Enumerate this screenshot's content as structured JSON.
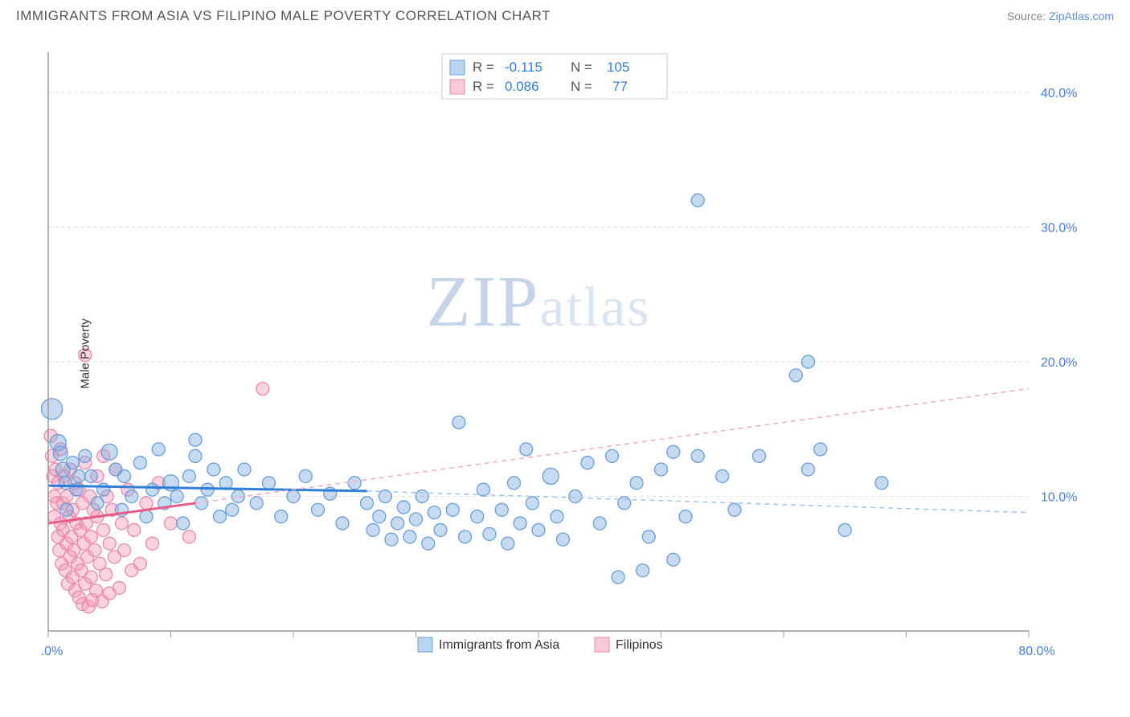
{
  "title": "IMMIGRANTS FROM ASIA VS FILIPINO MALE POVERTY CORRELATION CHART",
  "source_label": "Source: ",
  "source_name": "ZipAtlas.com",
  "ylabel": "Male Poverty",
  "watermark_a": "ZIP",
  "watermark_b": "atlas",
  "chart": {
    "type": "scatter",
    "xlim": [
      0,
      80
    ],
    "ylim": [
      0,
      43
    ],
    "x_ticks_minor": [
      10,
      20,
      30,
      40,
      50,
      60,
      70
    ],
    "x_ticks_major_labels": [
      {
        "v": 0,
        "label": "0.0%"
      },
      {
        "v": 80,
        "label": "80.0%"
      }
    ],
    "y_grid": [
      10,
      20,
      30,
      40
    ],
    "y_labels": [
      {
        "v": 10,
        "label": "10.0%"
      },
      {
        "v": 20,
        "label": "20.0%"
      },
      {
        "v": 30,
        "label": "30.0%"
      },
      {
        "v": 40,
        "label": "40.0%"
      }
    ],
    "background_color": "#ffffff",
    "grid_color": "#dddddd",
    "axis_color": "#999999",
    "series": [
      {
        "name": "Immigrants from Asia",
        "color_fill": "rgba(120,170,225,0.42)",
        "color_stroke": "#6a9ed8",
        "trend_color": "#2f7ed8",
        "trend_dash_color": "#a0c4e8",
        "R": "-0.115",
        "N": "105",
        "trend_solid": {
          "x1": 0,
          "y1": 10.8,
          "x2": 26,
          "y2": 10.4
        },
        "trend_dash": {
          "x1": 26,
          "y1": 10.4,
          "x2": 80,
          "y2": 8.8
        },
        "points": [
          {
            "x": 0.3,
            "y": 16.5,
            "r": 13
          },
          {
            "x": 0.8,
            "y": 14.0,
            "r": 10
          },
          {
            "x": 1.0,
            "y": 13.2,
            "r": 9
          },
          {
            "x": 1.2,
            "y": 12.0,
            "r": 9
          },
          {
            "x": 1.4,
            "y": 11.0,
            "r": 8
          },
          {
            "x": 1.5,
            "y": 9.0,
            "r": 8
          },
          {
            "x": 2.0,
            "y": 12.5,
            "r": 8
          },
          {
            "x": 2.3,
            "y": 10.5,
            "r": 8
          },
          {
            "x": 2.5,
            "y": 11.5,
            "r": 8
          },
          {
            "x": 3.0,
            "y": 13.0,
            "r": 8
          },
          {
            "x": 3.5,
            "y": 11.5,
            "r": 8
          },
          {
            "x": 4.0,
            "y": 9.5,
            "r": 8
          },
          {
            "x": 4.5,
            "y": 10.5,
            "r": 8
          },
          {
            "x": 5.0,
            "y": 13.3,
            "r": 10
          },
          {
            "x": 5.5,
            "y": 12.0,
            "r": 8
          },
          {
            "x": 6.0,
            "y": 9.0,
            "r": 8
          },
          {
            "x": 6.2,
            "y": 11.5,
            "r": 8
          },
          {
            "x": 6.8,
            "y": 10.0,
            "r": 8
          },
          {
            "x": 7.5,
            "y": 12.5,
            "r": 8
          },
          {
            "x": 8.0,
            "y": 8.5,
            "r": 8
          },
          {
            "x": 8.5,
            "y": 10.5,
            "r": 8
          },
          {
            "x": 9.0,
            "y": 13.5,
            "r": 8
          },
          {
            "x": 9.5,
            "y": 9.5,
            "r": 8
          },
          {
            "x": 10.0,
            "y": 11.0,
            "r": 10
          },
          {
            "x": 10.5,
            "y": 10.0,
            "r": 8
          },
          {
            "x": 11.0,
            "y": 8.0,
            "r": 8
          },
          {
            "x": 11.5,
            "y": 11.5,
            "r": 8
          },
          {
            "x": 12.0,
            "y": 13.0,
            "r": 8
          },
          {
            "x": 12.0,
            "y": 14.2,
            "r": 8
          },
          {
            "x": 12.5,
            "y": 9.5,
            "r": 8
          },
          {
            "x": 13.0,
            "y": 10.5,
            "r": 8
          },
          {
            "x": 13.5,
            "y": 12.0,
            "r": 8
          },
          {
            "x": 14.0,
            "y": 8.5,
            "r": 8
          },
          {
            "x": 14.5,
            "y": 11.0,
            "r": 8
          },
          {
            "x": 15.0,
            "y": 9.0,
            "r": 8
          },
          {
            "x": 15.5,
            "y": 10.0,
            "r": 8
          },
          {
            "x": 16.0,
            "y": 12.0,
            "r": 8
          },
          {
            "x": 17.0,
            "y": 9.5,
            "r": 8
          },
          {
            "x": 18.0,
            "y": 11.0,
            "r": 8
          },
          {
            "x": 19.0,
            "y": 8.5,
            "r": 8
          },
          {
            "x": 20.0,
            "y": 10.0,
            "r": 8
          },
          {
            "x": 21.0,
            "y": 11.5,
            "r": 8
          },
          {
            "x": 22.0,
            "y": 9.0,
            "r": 8
          },
          {
            "x": 23.0,
            "y": 10.2,
            "r": 8
          },
          {
            "x": 24.0,
            "y": 8.0,
            "r": 8
          },
          {
            "x": 25.0,
            "y": 11.0,
            "r": 8
          },
          {
            "x": 26.0,
            "y": 9.5,
            "r": 8
          },
          {
            "x": 26.5,
            "y": 7.5,
            "r": 8
          },
          {
            "x": 27.0,
            "y": 8.5,
            "r": 8
          },
          {
            "x": 27.5,
            "y": 10.0,
            "r": 8
          },
          {
            "x": 28.0,
            "y": 6.8,
            "r": 8
          },
          {
            "x": 28.5,
            "y": 8.0,
            "r": 8
          },
          {
            "x": 29.0,
            "y": 9.2,
            "r": 8
          },
          {
            "x": 29.5,
            "y": 7.0,
            "r": 8
          },
          {
            "x": 30.0,
            "y": 8.3,
            "r": 8
          },
          {
            "x": 30.5,
            "y": 10.0,
            "r": 8
          },
          {
            "x": 31.0,
            "y": 6.5,
            "r": 8
          },
          {
            "x": 31.5,
            "y": 8.8,
            "r": 8
          },
          {
            "x": 32.0,
            "y": 7.5,
            "r": 8
          },
          {
            "x": 33.0,
            "y": 9.0,
            "r": 8
          },
          {
            "x": 33.5,
            "y": 15.5,
            "r": 8
          },
          {
            "x": 34.0,
            "y": 7.0,
            "r": 8
          },
          {
            "x": 35.0,
            "y": 8.5,
            "r": 8
          },
          {
            "x": 35.5,
            "y": 10.5,
            "r": 8
          },
          {
            "x": 36.0,
            "y": 7.2,
            "r": 8
          },
          {
            "x": 37.0,
            "y": 9.0,
            "r": 8
          },
          {
            "x": 37.5,
            "y": 6.5,
            "r": 8
          },
          {
            "x": 38.0,
            "y": 11.0,
            "r": 8
          },
          {
            "x": 38.5,
            "y": 8.0,
            "r": 8
          },
          {
            "x": 39.0,
            "y": 13.5,
            "r": 8
          },
          {
            "x": 39.5,
            "y": 9.5,
            "r": 8
          },
          {
            "x": 40.0,
            "y": 7.5,
            "r": 8
          },
          {
            "x": 41.0,
            "y": 11.5,
            "r": 10
          },
          {
            "x": 41.5,
            "y": 8.5,
            "r": 8
          },
          {
            "x": 42.0,
            "y": 6.8,
            "r": 8
          },
          {
            "x": 43.0,
            "y": 10.0,
            "r": 8
          },
          {
            "x": 44.0,
            "y": 12.5,
            "r": 8
          },
          {
            "x": 45.0,
            "y": 8.0,
            "r": 8
          },
          {
            "x": 46.0,
            "y": 13.0,
            "r": 8
          },
          {
            "x": 46.5,
            "y": 4.0,
            "r": 8
          },
          {
            "x": 47.0,
            "y": 9.5,
            "r": 8
          },
          {
            "x": 48.0,
            "y": 11.0,
            "r": 8
          },
          {
            "x": 48.5,
            "y": 4.5,
            "r": 8
          },
          {
            "x": 49.0,
            "y": 7.0,
            "r": 8
          },
          {
            "x": 50.0,
            "y": 12.0,
            "r": 8
          },
          {
            "x": 51.0,
            "y": 13.3,
            "r": 8
          },
          {
            "x": 51.0,
            "y": 5.3,
            "r": 8
          },
          {
            "x": 52.0,
            "y": 8.5,
            "r": 8
          },
          {
            "x": 53.0,
            "y": 32.0,
            "r": 8
          },
          {
            "x": 53.0,
            "y": 13.0,
            "r": 8
          },
          {
            "x": 55.0,
            "y": 11.5,
            "r": 8
          },
          {
            "x": 56.0,
            "y": 9.0,
            "r": 8
          },
          {
            "x": 58.0,
            "y": 13.0,
            "r": 8
          },
          {
            "x": 61.0,
            "y": 19.0,
            "r": 8
          },
          {
            "x": 62.0,
            "y": 20.0,
            "r": 8
          },
          {
            "x": 62.0,
            "y": 12.0,
            "r": 8
          },
          {
            "x": 63.0,
            "y": 13.5,
            "r": 8
          },
          {
            "x": 65.0,
            "y": 7.5,
            "r": 8
          },
          {
            "x": 68.0,
            "y": 11.0,
            "r": 8
          }
        ]
      },
      {
        "name": "Filipinos",
        "color_fill": "rgba(245,150,180,0.42)",
        "color_stroke": "#e88aac",
        "trend_color": "#e85a8a",
        "trend_dash_color": "#f5a8c0",
        "R": "0.086",
        "N": "77",
        "trend_solid": {
          "x1": 0,
          "y1": 8.0,
          "x2": 12,
          "y2": 9.5
        },
        "trend_dash": {
          "x1": 12,
          "y1": 9.5,
          "x2": 80,
          "y2": 18.0
        },
        "points": [
          {
            "x": 0.2,
            "y": 14.5,
            "r": 8
          },
          {
            "x": 0.3,
            "y": 13.0,
            "r": 8
          },
          {
            "x": 0.4,
            "y": 11.5,
            "r": 8
          },
          {
            "x": 0.5,
            "y": 10.0,
            "r": 8
          },
          {
            "x": 0.5,
            "y": 8.5,
            "r": 8
          },
          {
            "x": 0.6,
            "y": 12.0,
            "r": 8
          },
          {
            "x": 0.7,
            "y": 9.5,
            "r": 8
          },
          {
            "x": 0.8,
            "y": 7.0,
            "r": 8
          },
          {
            "x": 0.8,
            "y": 11.0,
            "r": 8
          },
          {
            "x": 0.9,
            "y": 6.0,
            "r": 8
          },
          {
            "x": 1.0,
            "y": 8.0,
            "r": 8
          },
          {
            "x": 1.0,
            "y": 13.5,
            "r": 8
          },
          {
            "x": 1.1,
            "y": 5.0,
            "r": 8
          },
          {
            "x": 1.2,
            "y": 9.5,
            "r": 8
          },
          {
            "x": 1.2,
            "y": 7.5,
            "r": 8
          },
          {
            "x": 1.3,
            "y": 11.5,
            "r": 8
          },
          {
            "x": 1.4,
            "y": 4.5,
            "r": 8
          },
          {
            "x": 1.5,
            "y": 6.5,
            "r": 8
          },
          {
            "x": 1.5,
            "y": 10.0,
            "r": 8
          },
          {
            "x": 1.6,
            "y": 3.5,
            "r": 8
          },
          {
            "x": 1.7,
            "y": 8.5,
            "r": 8
          },
          {
            "x": 1.8,
            "y": 5.5,
            "r": 8
          },
          {
            "x": 1.8,
            "y": 12.0,
            "r": 8
          },
          {
            "x": 1.9,
            "y": 7.0,
            "r": 8
          },
          {
            "x": 2.0,
            "y": 4.0,
            "r": 8
          },
          {
            "x": 2.0,
            "y": 9.0,
            "r": 8
          },
          {
            "x": 2.1,
            "y": 6.0,
            "r": 8
          },
          {
            "x": 2.2,
            "y": 11.0,
            "r": 8
          },
          {
            "x": 2.2,
            "y": 3.0,
            "r": 8
          },
          {
            "x": 2.3,
            "y": 8.0,
            "r": 8
          },
          {
            "x": 2.4,
            "y": 5.0,
            "r": 8
          },
          {
            "x": 2.5,
            "y": 10.5,
            "r": 8
          },
          {
            "x": 2.5,
            "y": 2.5,
            "r": 8
          },
          {
            "x": 2.6,
            "y": 7.5,
            "r": 8
          },
          {
            "x": 2.7,
            "y": 4.5,
            "r": 8
          },
          {
            "x": 2.8,
            "y": 9.5,
            "r": 8
          },
          {
            "x": 2.8,
            "y": 2.0,
            "r": 8
          },
          {
            "x": 2.9,
            "y": 6.5,
            "r": 8
          },
          {
            "x": 3.0,
            "y": 3.5,
            "r": 8
          },
          {
            "x": 3.0,
            "y": 12.5,
            "r": 8
          },
          {
            "x": 3.1,
            "y": 8.0,
            "r": 8
          },
          {
            "x": 3.2,
            "y": 5.5,
            "r": 8
          },
          {
            "x": 3.3,
            "y": 1.8,
            "r": 8
          },
          {
            "x": 3.4,
            "y": 10.0,
            "r": 8
          },
          {
            "x": 3.5,
            "y": 7.0,
            "r": 8
          },
          {
            "x": 3.5,
            "y": 4.0,
            "r": 8
          },
          {
            "x": 3.6,
            "y": 2.3,
            "r": 8
          },
          {
            "x": 3.7,
            "y": 9.0,
            "r": 8
          },
          {
            "x": 3.8,
            "y": 6.0,
            "r": 8
          },
          {
            "x": 3.9,
            "y": 3.0,
            "r": 8
          },
          {
            "x": 4.0,
            "y": 11.5,
            "r": 8
          },
          {
            "x": 3.0,
            "y": 20.5,
            "r": 8
          },
          {
            "x": 4.0,
            "y": 8.5,
            "r": 8
          },
          {
            "x": 4.2,
            "y": 5.0,
            "r": 8
          },
          {
            "x": 4.4,
            "y": 2.2,
            "r": 8
          },
          {
            "x": 4.5,
            "y": 13.0,
            "r": 8
          },
          {
            "x": 4.5,
            "y": 7.5,
            "r": 8
          },
          {
            "x": 4.7,
            "y": 4.2,
            "r": 8
          },
          {
            "x": 4.8,
            "y": 10.0,
            "r": 8
          },
          {
            "x": 5.0,
            "y": 6.5,
            "r": 8
          },
          {
            "x": 5.0,
            "y": 2.8,
            "r": 8
          },
          {
            "x": 5.2,
            "y": 9.0,
            "r": 8
          },
          {
            "x": 5.4,
            "y": 5.5,
            "r": 8
          },
          {
            "x": 5.5,
            "y": 12.0,
            "r": 8
          },
          {
            "x": 5.8,
            "y": 3.2,
            "r": 8
          },
          {
            "x": 6.0,
            "y": 8.0,
            "r": 8
          },
          {
            "x": 6.2,
            "y": 6.0,
            "r": 8
          },
          {
            "x": 6.5,
            "y": 10.5,
            "r": 8
          },
          {
            "x": 6.8,
            "y": 4.5,
            "r": 8
          },
          {
            "x": 7.0,
            "y": 7.5,
            "r": 8
          },
          {
            "x": 7.5,
            "y": 5.0,
            "r": 8
          },
          {
            "x": 8.0,
            "y": 9.5,
            "r": 8
          },
          {
            "x": 8.5,
            "y": 6.5,
            "r": 8
          },
          {
            "x": 9.0,
            "y": 11.0,
            "r": 8
          },
          {
            "x": 10.0,
            "y": 8.0,
            "r": 8
          },
          {
            "x": 11.5,
            "y": 7.0,
            "r": 8
          },
          {
            "x": 17.5,
            "y": 18.0,
            "r": 8
          }
        ]
      }
    ],
    "legend": {
      "items": [
        {
          "label": "Immigrants from Asia",
          "series": 0
        },
        {
          "label": "Filipinos",
          "series": 1
        }
      ]
    }
  }
}
